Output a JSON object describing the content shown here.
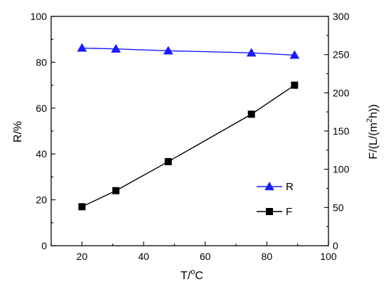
{
  "chart_data": {
    "type": "line",
    "title": "",
    "xlabel": {
      "base": "T/",
      "sup": "o",
      "tail": "C"
    },
    "ylabel_left": "R/%",
    "ylabel_right": {
      "base": "F/(L/(m",
      "sup": "2",
      "tail": "h))"
    },
    "xlim": [
      10,
      100
    ],
    "ylim_left": [
      0,
      100
    ],
    "ylim_right": [
      0,
      300
    ],
    "x_ticks": [
      20,
      40,
      60,
      80,
      100
    ],
    "y_left_ticks": [
      0,
      20,
      40,
      60,
      80,
      100
    ],
    "y_right_ticks": [
      0,
      50,
      100,
      150,
      200,
      250,
      300
    ],
    "grid": false,
    "legend_position": "center-right",
    "series": [
      {
        "name": "R",
        "axis": "left",
        "marker": "triangle",
        "color": "#1a1aff",
        "x": [
          20,
          31,
          48,
          75,
          89
        ],
        "y": [
          86.2,
          85.8,
          85.0,
          84.1,
          83.1
        ]
      },
      {
        "name": "F",
        "axis": "right",
        "marker": "square",
        "color": "#000000",
        "x": [
          20,
          31,
          48,
          75,
          89
        ],
        "y": [
          51,
          72,
          110,
          172,
          210
        ]
      }
    ]
  }
}
